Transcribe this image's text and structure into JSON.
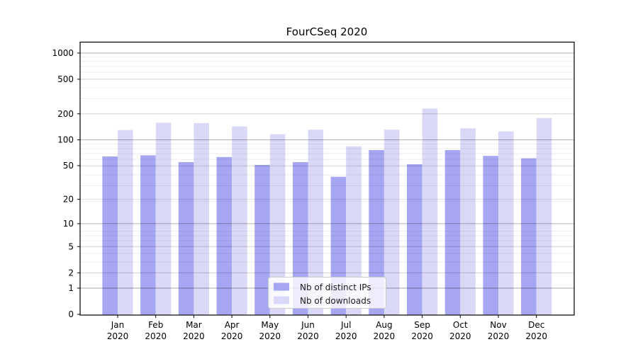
{
  "chart_data": {
    "type": "bar",
    "title": "FourCSeq 2020",
    "categories": [
      "Jan 2020",
      "Feb 2020",
      "Mar 2020",
      "Apr 2020",
      "May 2020",
      "Jun 2020",
      "Jul 2020",
      "Aug 2020",
      "Sep 2020",
      "Oct 2020",
      "Nov 2020",
      "Dec 2020"
    ],
    "series": [
      {
        "name": "Nb of distinct IPs",
        "color": "#a6a6f2",
        "values": [
          64,
          66,
          55,
          63,
          51,
          55,
          37,
          76,
          52,
          76,
          65,
          61
        ]
      },
      {
        "name": "Nb of downloads",
        "color": "#d9d9f7",
        "values": [
          130,
          158,
          156,
          143,
          116,
          131,
          84,
          131,
          230,
          136,
          125,
          179
        ]
      }
    ],
    "yticks": [
      0,
      1,
      2,
      5,
      10,
      20,
      50,
      100,
      200,
      500,
      1000
    ],
    "yscale": "log1p",
    "ylim": [
      0,
      1300
    ],
    "grid": "both",
    "legend_position": "lower center inside plot",
    "xlabel": "",
    "ylabel": ""
  },
  "style": {
    "axis_color": "#000000",
    "grid_major_dark": "rgba(0,0,0,0.30)",
    "grid_major": "rgba(0,0,0,0.12)",
    "grid_minor": "rgba(0,0,0,0.07)"
  }
}
